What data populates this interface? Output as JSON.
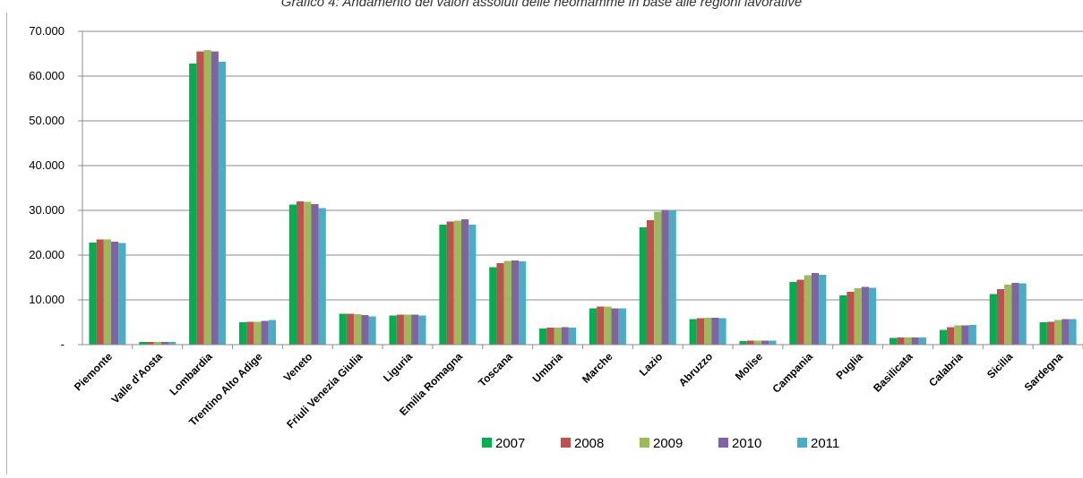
{
  "chart_data": {
    "type": "bar",
    "title": "Grafico 4: Andamento dei valori assoluti delle neomamme in base alle regioni lavorative",
    "xlabel": "",
    "ylabel": "",
    "ylim": [
      0,
      70000
    ],
    "yticks": [
      "-",
      "10.000",
      "20.000",
      "30.000",
      "40.000",
      "50.000",
      "60.000",
      "70.000"
    ],
    "grid": true,
    "legend_position": "bottom",
    "categories": [
      "Piemonte",
      "Valle d'Aosta",
      "Lombardia",
      "Trentino Alto Adige",
      "Veneto",
      "Friuli Venezia Giulia",
      "Liguria",
      "Emilia Romagna",
      "Toscana",
      "Umbria",
      "Marche",
      "Lazio",
      "Abruzzo",
      "Molise",
      "Campania",
      "Puglia",
      "Basilicata",
      "Calabria",
      "Sicilia",
      "Sardegna"
    ],
    "series": [
      {
        "name": "2007",
        "color": "#00b050",
        "values": [
          22800,
          600,
          62800,
          5000,
          31300,
          6900,
          6500,
          26800,
          17300,
          3600,
          8100,
          26200,
          5700,
          800,
          14000,
          11000,
          1500,
          3300,
          11300,
          5000
        ]
      },
      {
        "name": "2008",
        "color": "#c0504d",
        "values": [
          23500,
          600,
          65500,
          5100,
          32000,
          6900,
          6700,
          27500,
          18200,
          3800,
          8500,
          27800,
          5900,
          900,
          14500,
          11800,
          1600,
          3900,
          12400,
          5100
        ]
      },
      {
        "name": "2009",
        "color": "#9bbb59",
        "values": [
          23500,
          600,
          65800,
          5100,
          31900,
          6800,
          6700,
          27700,
          18700,
          3800,
          8500,
          29700,
          6000,
          900,
          15500,
          12600,
          1600,
          4300,
          13400,
          5500
        ]
      },
      {
        "name": "2010",
        "color": "#8064a2",
        "values": [
          23000,
          600,
          65500,
          5300,
          31400,
          6600,
          6700,
          28000,
          18800,
          3900,
          8100,
          30100,
          6000,
          900,
          16000,
          12900,
          1600,
          4300,
          13800,
          5700
        ]
      },
      {
        "name": "2011",
        "color": "#4bacc6",
        "values": [
          22700,
          600,
          63200,
          5500,
          30500,
          6300,
          6500,
          26800,
          18600,
          3800,
          8100,
          30000,
          5900,
          900,
          15600,
          12700,
          1600,
          4400,
          13700,
          5700
        ]
      }
    ]
  }
}
